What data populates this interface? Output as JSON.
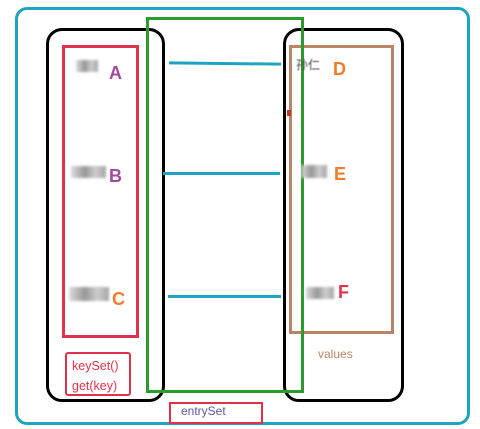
{
  "keys": [
    {
      "letter": "A",
      "color": "#a5489c"
    },
    {
      "letter": "B",
      "color": "#a5489c"
    },
    {
      "letter": "C",
      "color": "#f07c2a"
    }
  ],
  "values": [
    {
      "letter": "D",
      "color": "#f07c2a",
      "label": "孙仁"
    },
    {
      "letter": "E",
      "color": "#f07c2a"
    },
    {
      "letter": "F",
      "color": "#e0334b"
    }
  ],
  "methods": [
    "keySet()",
    "get(key)"
  ],
  "entry_label": "entrySet",
  "values_label": "values",
  "colors": {
    "frame": "#1ea3c2",
    "keys_border": "#e0334b",
    "values_border": "#b78468",
    "entry_border": "#2c9a2d"
  }
}
